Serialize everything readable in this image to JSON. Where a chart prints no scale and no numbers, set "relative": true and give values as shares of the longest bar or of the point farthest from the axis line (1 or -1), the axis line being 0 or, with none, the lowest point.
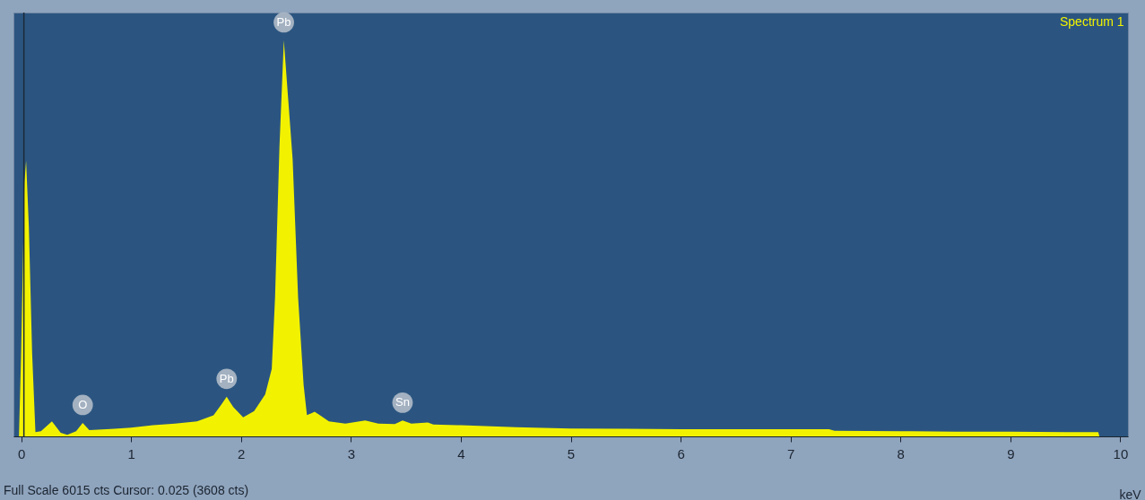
{
  "chart_data": {
    "type": "area",
    "relative": true,
    "xlabel": "keV",
    "xlim": [
      -0.07,
      10.07
    ],
    "xticks": [
      0,
      1,
      2,
      3,
      4,
      5,
      6,
      7,
      8,
      9,
      10
    ],
    "legend": "top right",
    "series": [
      {
        "name": "Spectrum 1",
        "color": "#f2f200",
        "x": [
          -0.02,
          0.0,
          0.03,
          0.045,
          0.07,
          0.1,
          0.13,
          0.18,
          0.28,
          0.36,
          0.42,
          0.5,
          0.56,
          0.62,
          0.7,
          0.85,
          1.0,
          1.2,
          1.4,
          1.6,
          1.75,
          1.82,
          1.87,
          1.93,
          2.02,
          2.12,
          2.22,
          2.28,
          2.31,
          2.35,
          2.39,
          2.43,
          2.47,
          2.52,
          2.57,
          2.6,
          2.64,
          2.67,
          2.72,
          2.8,
          2.95,
          3.13,
          3.25,
          3.4,
          3.47,
          3.55,
          3.7,
          3.75,
          4.0,
          4.5,
          5.0,
          5.5,
          6.0,
          6.5,
          7.0,
          7.35,
          7.4,
          8.0,
          8.5,
          9.0,
          9.5,
          9.8,
          9.81
        ],
        "values": [
          0,
          0.21,
          0.64,
          0.696,
          0.53,
          0.21,
          0.011,
          0.013,
          0.038,
          0.009,
          0.004,
          0.013,
          0.034,
          0.016,
          0.017,
          0.019,
          0.022,
          0.028,
          0.032,
          0.038,
          0.053,
          0.08,
          0.1,
          0.074,
          0.048,
          0.064,
          0.106,
          0.17,
          0.35,
          0.73,
          1.0,
          0.85,
          0.7,
          0.35,
          0.13,
          0.054,
          0.058,
          0.062,
          0.053,
          0.038,
          0.032,
          0.04,
          0.032,
          0.031,
          0.04,
          0.032,
          0.035,
          0.03,
          0.028,
          0.023,
          0.02,
          0.019,
          0.018,
          0.018,
          0.018,
          0.018,
          0.014,
          0.013,
          0.012,
          0.012,
          0.011,
          0.011,
          0
        ]
      }
    ],
    "ref_lines": [
      {
        "axis": "x",
        "value": 0.025,
        "color": "#1c2a38"
      }
    ],
    "annotations": [
      {
        "text": "O",
        "x": 0.56,
        "y": 0.034
      },
      {
        "text": "Pb",
        "x": 1.87,
        "y": 0.1
      },
      {
        "text": "Pb",
        "x": 2.39,
        "y": 1.0
      },
      {
        "text": "Sn",
        "x": 3.47,
        "y": 0.04
      },
      "Full Scale 6015 cts Cursor: 0.025  (3608 cts)"
    ]
  }
}
